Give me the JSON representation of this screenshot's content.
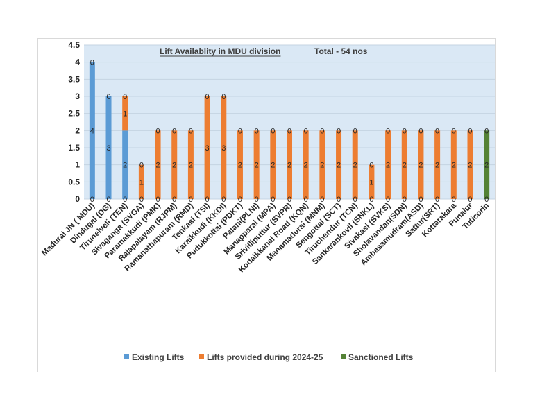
{
  "chart_data": {
    "type": "bar",
    "stacked": true,
    "title": "Lift Availablity in MDU division",
    "subtitle": "Total - 54 nos",
    "xlabel": "",
    "ylabel": "",
    "ylim": [
      0,
      4.5
    ],
    "yticks": [
      "0",
      "0.5",
      "1",
      "1.5",
      "2",
      "2.5",
      "3",
      "3.5",
      "4",
      "4.5"
    ],
    "grid": true,
    "legend_position": "bottom",
    "categories": [
      "Madurai JN ( MDU)",
      "Dindugal (DG)",
      "Tirunelveli (TEN)",
      "Sivaganga (SVGA)",
      "Paramakkudi (PMK)",
      "Rajapalayam (RJPM)",
      "Ramanathapuram (RMD)",
      "Tenkasi (TSI)",
      "Karaikkudi (KKDI)",
      "Pudukkottai (PDKT)",
      "Palani(PLNI)",
      "Manapparai (MPA)",
      "Srivilliputtur (SVPR)",
      "Kodaikkanal Road (KQN)",
      "Manamadurai (MNM)",
      "Sengottai (SCT)",
      "Tiruchendur (TCN)",
      "Sankarankovil (SNKL)",
      "Sivakasi (SVKS)",
      "Sholavandan(SDN)",
      "Ambasamudram(ASD)",
      "Sattur(SRT)",
      "Kottarakara",
      "Punalur",
      "Tuticorin"
    ],
    "series": [
      {
        "name": "Existing Lifts",
        "color": "#5b9bd5",
        "values": [
          4,
          3,
          2,
          0,
          0,
          0,
          0,
          0,
          0,
          0,
          0,
          0,
          0,
          0,
          0,
          0,
          0,
          0,
          0,
          0,
          0,
          0,
          0,
          0,
          0
        ]
      },
      {
        "name": "Lifts provided during 2024-25",
        "color": "#ed7d31",
        "values": [
          0,
          0,
          1,
          1,
          2,
          2,
          2,
          3,
          3,
          2,
          2,
          2,
          2,
          2,
          2,
          2,
          2,
          1,
          2,
          2,
          2,
          2,
          2,
          2,
          0
        ]
      },
      {
        "name": "Sanctioned Lifts",
        "color": "#548235",
        "values": [
          0,
          0,
          0,
          0,
          0,
          0,
          0,
          0,
          0,
          0,
          0,
          0,
          0,
          0,
          0,
          0,
          0,
          0,
          0,
          0,
          0,
          0,
          0,
          0,
          2
        ]
      }
    ]
  }
}
